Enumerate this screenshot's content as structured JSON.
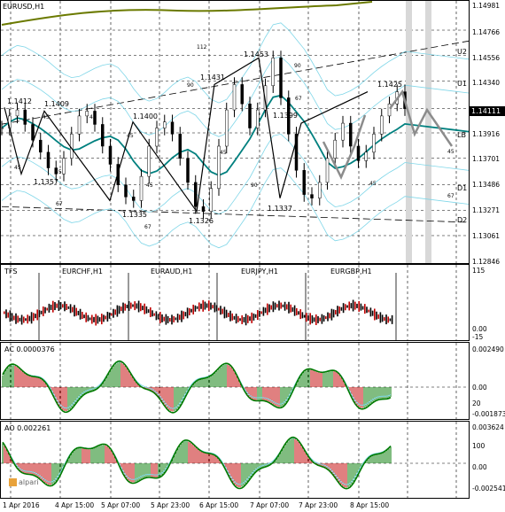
{
  "chart_data": [
    {
      "type": "candlestick",
      "title": "EURUSD,H1",
      "last_price_tag": "1.14111",
      "price_axis_labels": [
        "1.14981",
        "1.14766",
        "1.14556",
        "1.14340",
        "1.14111",
        "1.13916",
        "1.13701",
        "1.13486",
        "1.13271",
        "1.13061",
        "1.12846"
      ],
      "close_series": [
        1.1395,
        1.1405,
        1.141,
        1.1398,
        1.1385,
        1.1375,
        1.1362,
        1.1357,
        1.137,
        1.139,
        1.1405,
        1.1409,
        1.1398,
        1.138,
        1.1365,
        1.1348,
        1.1338,
        1.1335,
        1.1355,
        1.138,
        1.1395,
        1.14,
        1.139,
        1.137,
        1.135,
        1.133,
        1.1326,
        1.1345,
        1.138,
        1.141,
        1.1431,
        1.1415,
        1.1395,
        1.141,
        1.143,
        1.1453,
        1.142,
        1.139,
        1.136,
        1.134,
        1.1337,
        1.135,
        1.137,
        1.1385,
        1.1399,
        1.138,
        1.1368,
        1.1375,
        1.139,
        1.1405,
        1.1415,
        1.1425,
        1.1411
      ],
      "forecast_series": [
        1.1411,
        1.1425,
        1.139,
        1.141,
        1.1395,
        1.138
      ],
      "level_labels": [
        {
          "text": "1.1412"
        },
        {
          "text": "1.1409"
        },
        {
          "text": "1.1357"
        },
        {
          "text": "1.1400"
        },
        {
          "text": "1.1335"
        },
        {
          "text": "1.1326"
        },
        {
          "text": "1.1431"
        },
        {
          "text": "1.1453"
        },
        {
          "text": "1.1399"
        },
        {
          "text": "1.1337"
        },
        {
          "text": "1.1425"
        }
      ],
      "angle_labels": [
        "45",
        "45",
        "45",
        "45",
        "45",
        "45",
        "45",
        "45",
        "45",
        "90",
        "90",
        "90",
        "67",
        "67",
        "67",
        "67",
        "112"
      ],
      "band_labels": [
        "U2",
        "U1",
        "LB",
        "D1",
        "D2"
      ]
    },
    {
      "type": "bar",
      "title": "TFS",
      "panel_labels": [
        "EURCHF,H1",
        "EURAUD,H1",
        "EURJPY,H1",
        "EURGBP,H1"
      ],
      "axis_labels": [
        "115",
        "0.00",
        "-15"
      ]
    },
    {
      "type": "bar",
      "title": "AC 0.0000376",
      "axis_labels": [
        "0.002490",
        "0.00",
        "20",
        "-0.001873"
      ]
    },
    {
      "type": "bar",
      "title": "AO 0.002261",
      "axis_labels": [
        "0.003624",
        "100",
        "0.00",
        "-0.002541"
      ]
    }
  ],
  "time_axis": [
    "1 Apr 2016",
    "4 Apr 15:00",
    "5 Apr 07:00",
    "5 Apr 23:00",
    "6 Apr 15:00",
    "7 Apr 07:00",
    "7 Apr 23:00",
    "8 Apr 15:00"
  ],
  "logo_text": "alpari",
  "colors": {
    "cyan": "#7fd6e8",
    "teal": "#00807f",
    "olive": "#6b7a00",
    "green": "#007a00",
    "red": "#c00000",
    "gray": "#8c8c8c"
  }
}
